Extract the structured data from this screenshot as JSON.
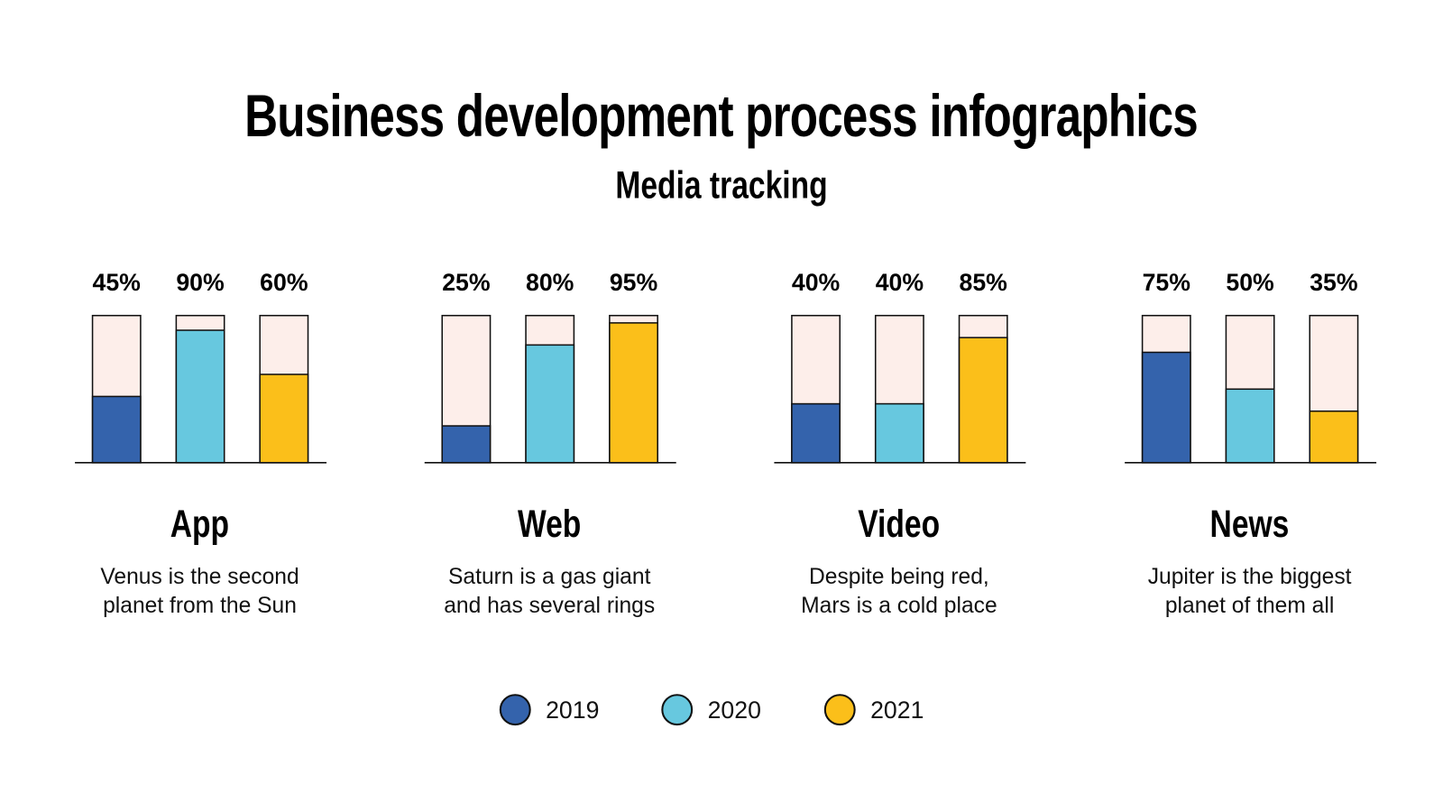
{
  "title": "Business development process infographics",
  "subtitle": "Media tracking",
  "colors": {
    "2019": "#3463ac",
    "2020": "#67c8df",
    "2021": "#fbbf1a",
    "track": "#fdeeea",
    "outline": "#111111"
  },
  "chart_data": {
    "type": "bar",
    "title": "Business development process infographics",
    "subtitle": "Media tracking",
    "ylim": [
      0,
      100
    ],
    "unit": "%",
    "legend_position": "bottom",
    "series_names": [
      "2019",
      "2020",
      "2021"
    ],
    "groups": [
      {
        "category": "App",
        "description_lines": [
          "Venus is the second",
          "planet from the Sun"
        ],
        "values": [
          45,
          90,
          60
        ]
      },
      {
        "category": "Web",
        "description_lines": [
          "Saturn is a gas giant",
          "and has several rings"
        ],
        "values": [
          25,
          80,
          95
        ]
      },
      {
        "category": "Video",
        "description_lines": [
          "Despite being red,",
          "Mars is a cold place"
        ],
        "values": [
          40,
          40,
          85
        ]
      },
      {
        "category": "News",
        "description_lines": [
          "Jupiter is the biggest",
          "planet of them all"
        ],
        "values": [
          75,
          50,
          35
        ]
      }
    ]
  },
  "legend": [
    {
      "label": "2019",
      "color": "#3463ac"
    },
    {
      "label": "2020",
      "color": "#67c8df"
    },
    {
      "label": "2021",
      "color": "#fbbf1a"
    }
  ]
}
